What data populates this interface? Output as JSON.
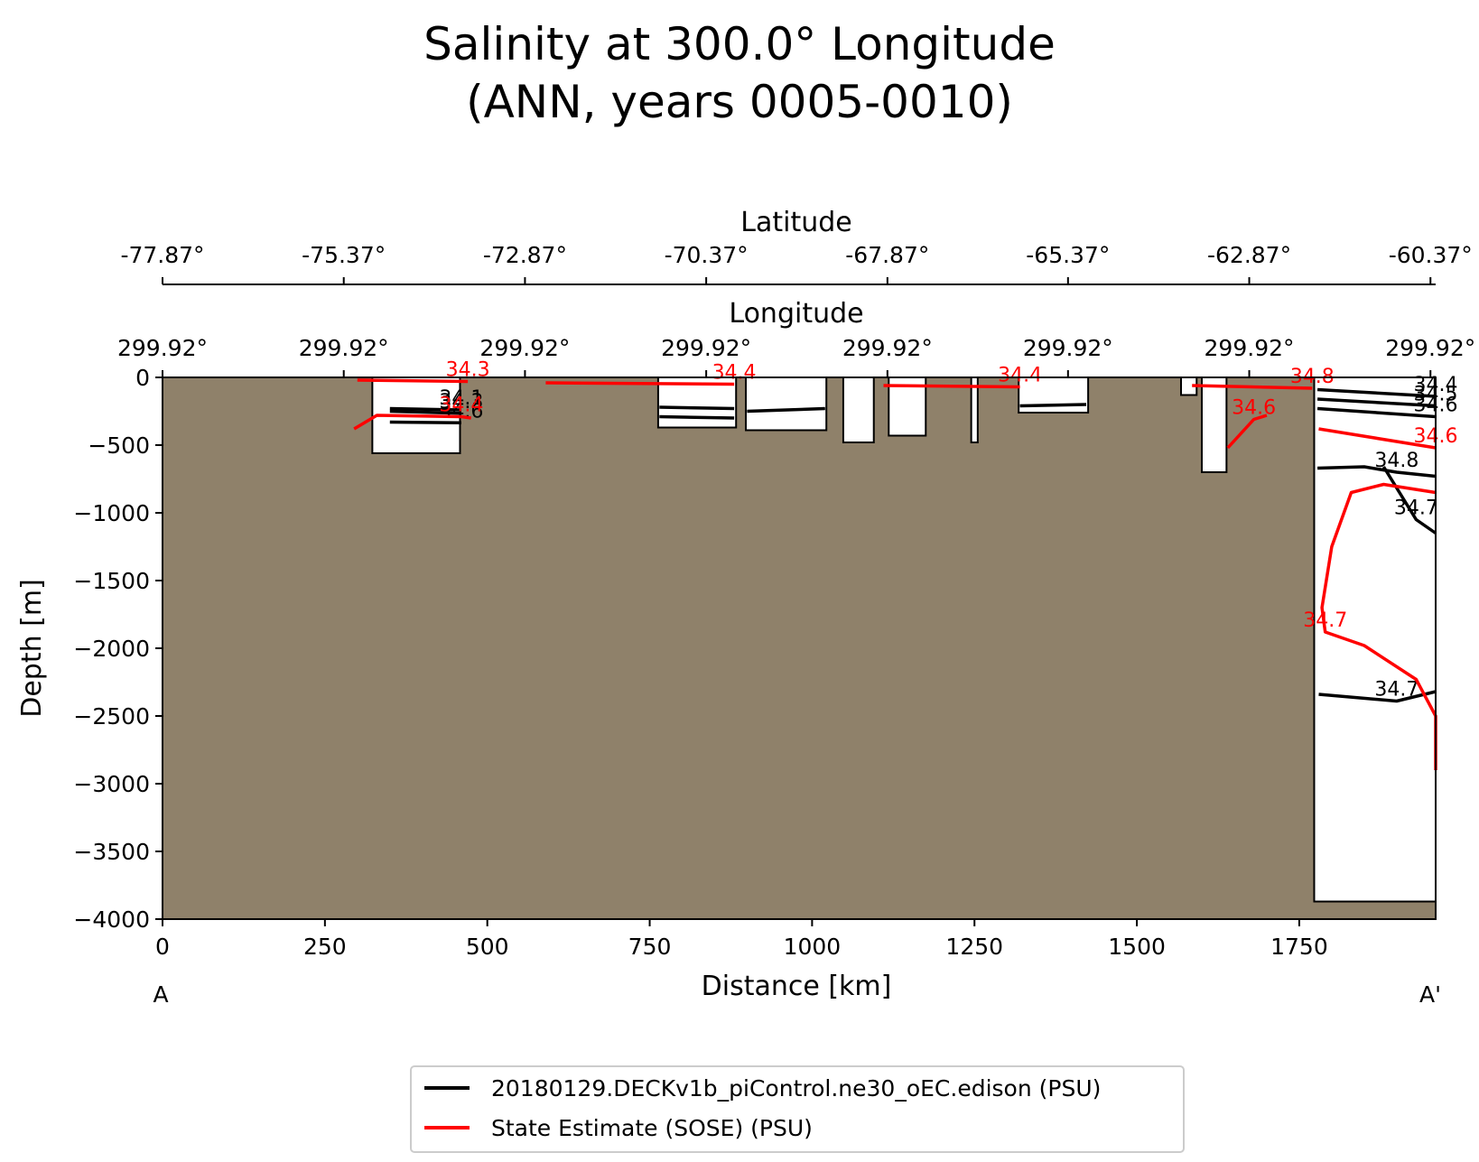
{
  "chart_data": {
    "type": "contour",
    "title_line1": "Salinity at 300.0° Longitude",
    "title_line2": "(ANN, years 0005-0010)",
    "xlabel": "Distance [km]",
    "ylabel": "Depth [m]",
    "xlim": [
      0,
      1960
    ],
    "ylim": [
      -4000,
      0
    ],
    "x_ticks": [
      "0",
      "250",
      "500",
      "750",
      "1000",
      "1250",
      "1500",
      "1750"
    ],
    "x_tick_values": [
      0,
      250,
      500,
      750,
      1000,
      1250,
      1500,
      1750
    ],
    "y_ticks": [
      "0",
      "−500",
      "−1000",
      "−1500",
      "−2000",
      "−2500",
      "−3000",
      "−3500",
      "−4000"
    ],
    "y_tick_values": [
      0,
      -500,
      -1000,
      -1500,
      -2000,
      -2500,
      -3000,
      -3500,
      -4000
    ],
    "latitude_axis": {
      "label": "Latitude",
      "ticks": [
        "-77.87°",
        "-75.37°",
        "-72.87°",
        "-70.37°",
        "-67.87°",
        "-65.37°",
        "-62.87°",
        "-60.37°"
      ],
      "tick_positions_km": [
        0,
        279,
        558,
        837,
        1116,
        1394,
        1673,
        1952
      ]
    },
    "longitude_axis": {
      "label": "Longitude",
      "ticks": [
        "299.92°",
        "299.92°",
        "299.92°",
        "299.92°",
        "299.92°",
        "299.92°",
        "299.92°",
        "299.92°"
      ],
      "tick_positions_km": [
        0,
        279,
        558,
        837,
        1116,
        1394,
        1673,
        1952
      ]
    },
    "endpoints": {
      "start": "A",
      "end": "A'"
    },
    "land_color": "#8f816a",
    "water_regions": [
      {
        "x": [
          323,
          458
        ],
        "depth": [
          0,
          -560
        ]
      },
      {
        "x": [
          763,
          883
        ],
        "depth": [
          0,
          -370
        ]
      },
      {
        "x": [
          898,
          1022
        ],
        "depth": [
          0,
          -390
        ]
      },
      {
        "x": [
          1048,
          1095
        ],
        "depth": [
          0,
          -480
        ]
      },
      {
        "x": [
          1118,
          1175
        ],
        "depth": [
          0,
          -430
        ]
      },
      {
        "x": [
          1245,
          1255
        ],
        "depth": [
          0,
          -480
        ]
      },
      {
        "x": [
          1318,
          1425
        ],
        "depth": [
          0,
          -260
        ]
      },
      {
        "x": [
          1568,
          1592
        ],
        "depth": [
          0,
          -130
        ]
      },
      {
        "x": [
          1600,
          1638
        ],
        "depth": [
          0,
          -700
        ]
      },
      {
        "x": [
          1773,
          1960
        ],
        "depth": [
          0,
          -3870
        ]
      }
    ],
    "series": [
      {
        "name": "20180129.DECKv1b_piControl.ne30_oEC.edison (PSU)",
        "color": "#000000",
        "contours": [
          {
            "label": "34.1",
            "points": [
              [
                350,
                -230
              ],
              [
                460,
                -240
              ]
            ]
          },
          {
            "label": "34.3",
            "points": [
              [
                350,
                -250
              ],
              [
                460,
                -265
              ]
            ]
          },
          {
            "label": "34.6",
            "points": [
              [
                350,
                -330
              ],
              [
                460,
                -335
              ]
            ]
          },
          {
            "label": "",
            "points": [
              [
                765,
                -220
              ],
              [
                880,
                -230
              ]
            ]
          },
          {
            "label": "",
            "points": [
              [
                765,
                -290
              ],
              [
                880,
                -300
              ]
            ]
          },
          {
            "label": "",
            "points": [
              [
                900,
                -250
              ],
              [
                1020,
                -230
              ]
            ]
          },
          {
            "label": "",
            "points": [
              [
                1320,
                -210
              ],
              [
                1422,
                -200
              ]
            ]
          },
          {
            "label": "34.4",
            "points": [
              [
                1778,
                -90
              ],
              [
                1960,
                -140
              ]
            ]
          },
          {
            "label": "34.5",
            "points": [
              [
                1778,
                -160
              ],
              [
                1960,
                -210
              ]
            ]
          },
          {
            "label": "34.6",
            "points": [
              [
                1778,
                -230
              ],
              [
                1960,
                -290
              ]
            ]
          },
          {
            "label": "34.8",
            "points": [
              [
                1778,
                -670
              ],
              [
                1850,
                -660
              ],
              [
                1900,
                -700
              ],
              [
                1960,
                -730
              ]
            ]
          },
          {
            "label": "34.7",
            "points": [
              [
                1880,
                -660
              ],
              [
                1930,
                -1050
              ],
              [
                1960,
                -1150
              ]
            ]
          },
          {
            "label": "34.7",
            "points": [
              [
                1780,
                -2340
              ],
              [
                1900,
                -2390
              ],
              [
                1960,
                -2320
              ]
            ]
          }
        ]
      },
      {
        "name": "State Estimate (SOSE) (PSU)",
        "color": "#ff0000",
        "contours": [
          {
            "label": "34.3",
            "points": [
              [
                300,
                -20
              ],
              [
                470,
                -30
              ]
            ]
          },
          {
            "label": "34.4",
            "points": [
              [
                295,
                -380
              ],
              [
                330,
                -280
              ],
              [
                460,
                -290
              ],
              [
                475,
                -300
              ]
            ]
          },
          {
            "label": "34.4",
            "points": [
              [
                590,
                -40
              ],
              [
                880,
                -50
              ]
            ]
          },
          {
            "label": "34.4",
            "points": [
              [
                1110,
                -60
              ],
              [
                1320,
                -70
              ]
            ]
          },
          {
            "label": "34.8",
            "points": [
              [
                1585,
                -60
              ],
              [
                1770,
                -80
              ]
            ]
          },
          {
            "label": "34.6",
            "points": [
              [
                1640,
                -520
              ],
              [
                1680,
                -310
              ],
              [
                1700,
                -280
              ]
            ]
          },
          {
            "label": "34.6",
            "points": [
              [
                1780,
                -380
              ],
              [
                1960,
                -520
              ]
            ]
          },
          {
            "label": "34.7",
            "points": [
              [
                1960,
                -850
              ],
              [
                1880,
                -790
              ],
              [
                1830,
                -850
              ],
              [
                1800,
                -1250
              ],
              [
                1785,
                -1700
              ],
              [
                1790,
                -1880
              ],
              [
                1850,
                -1980
              ],
              [
                1930,
                -2230
              ],
              [
                1960,
                -2500
              ],
              [
                1960,
                -2900
              ]
            ]
          }
        ]
      }
    ],
    "legend_placement": "bottom-center"
  }
}
